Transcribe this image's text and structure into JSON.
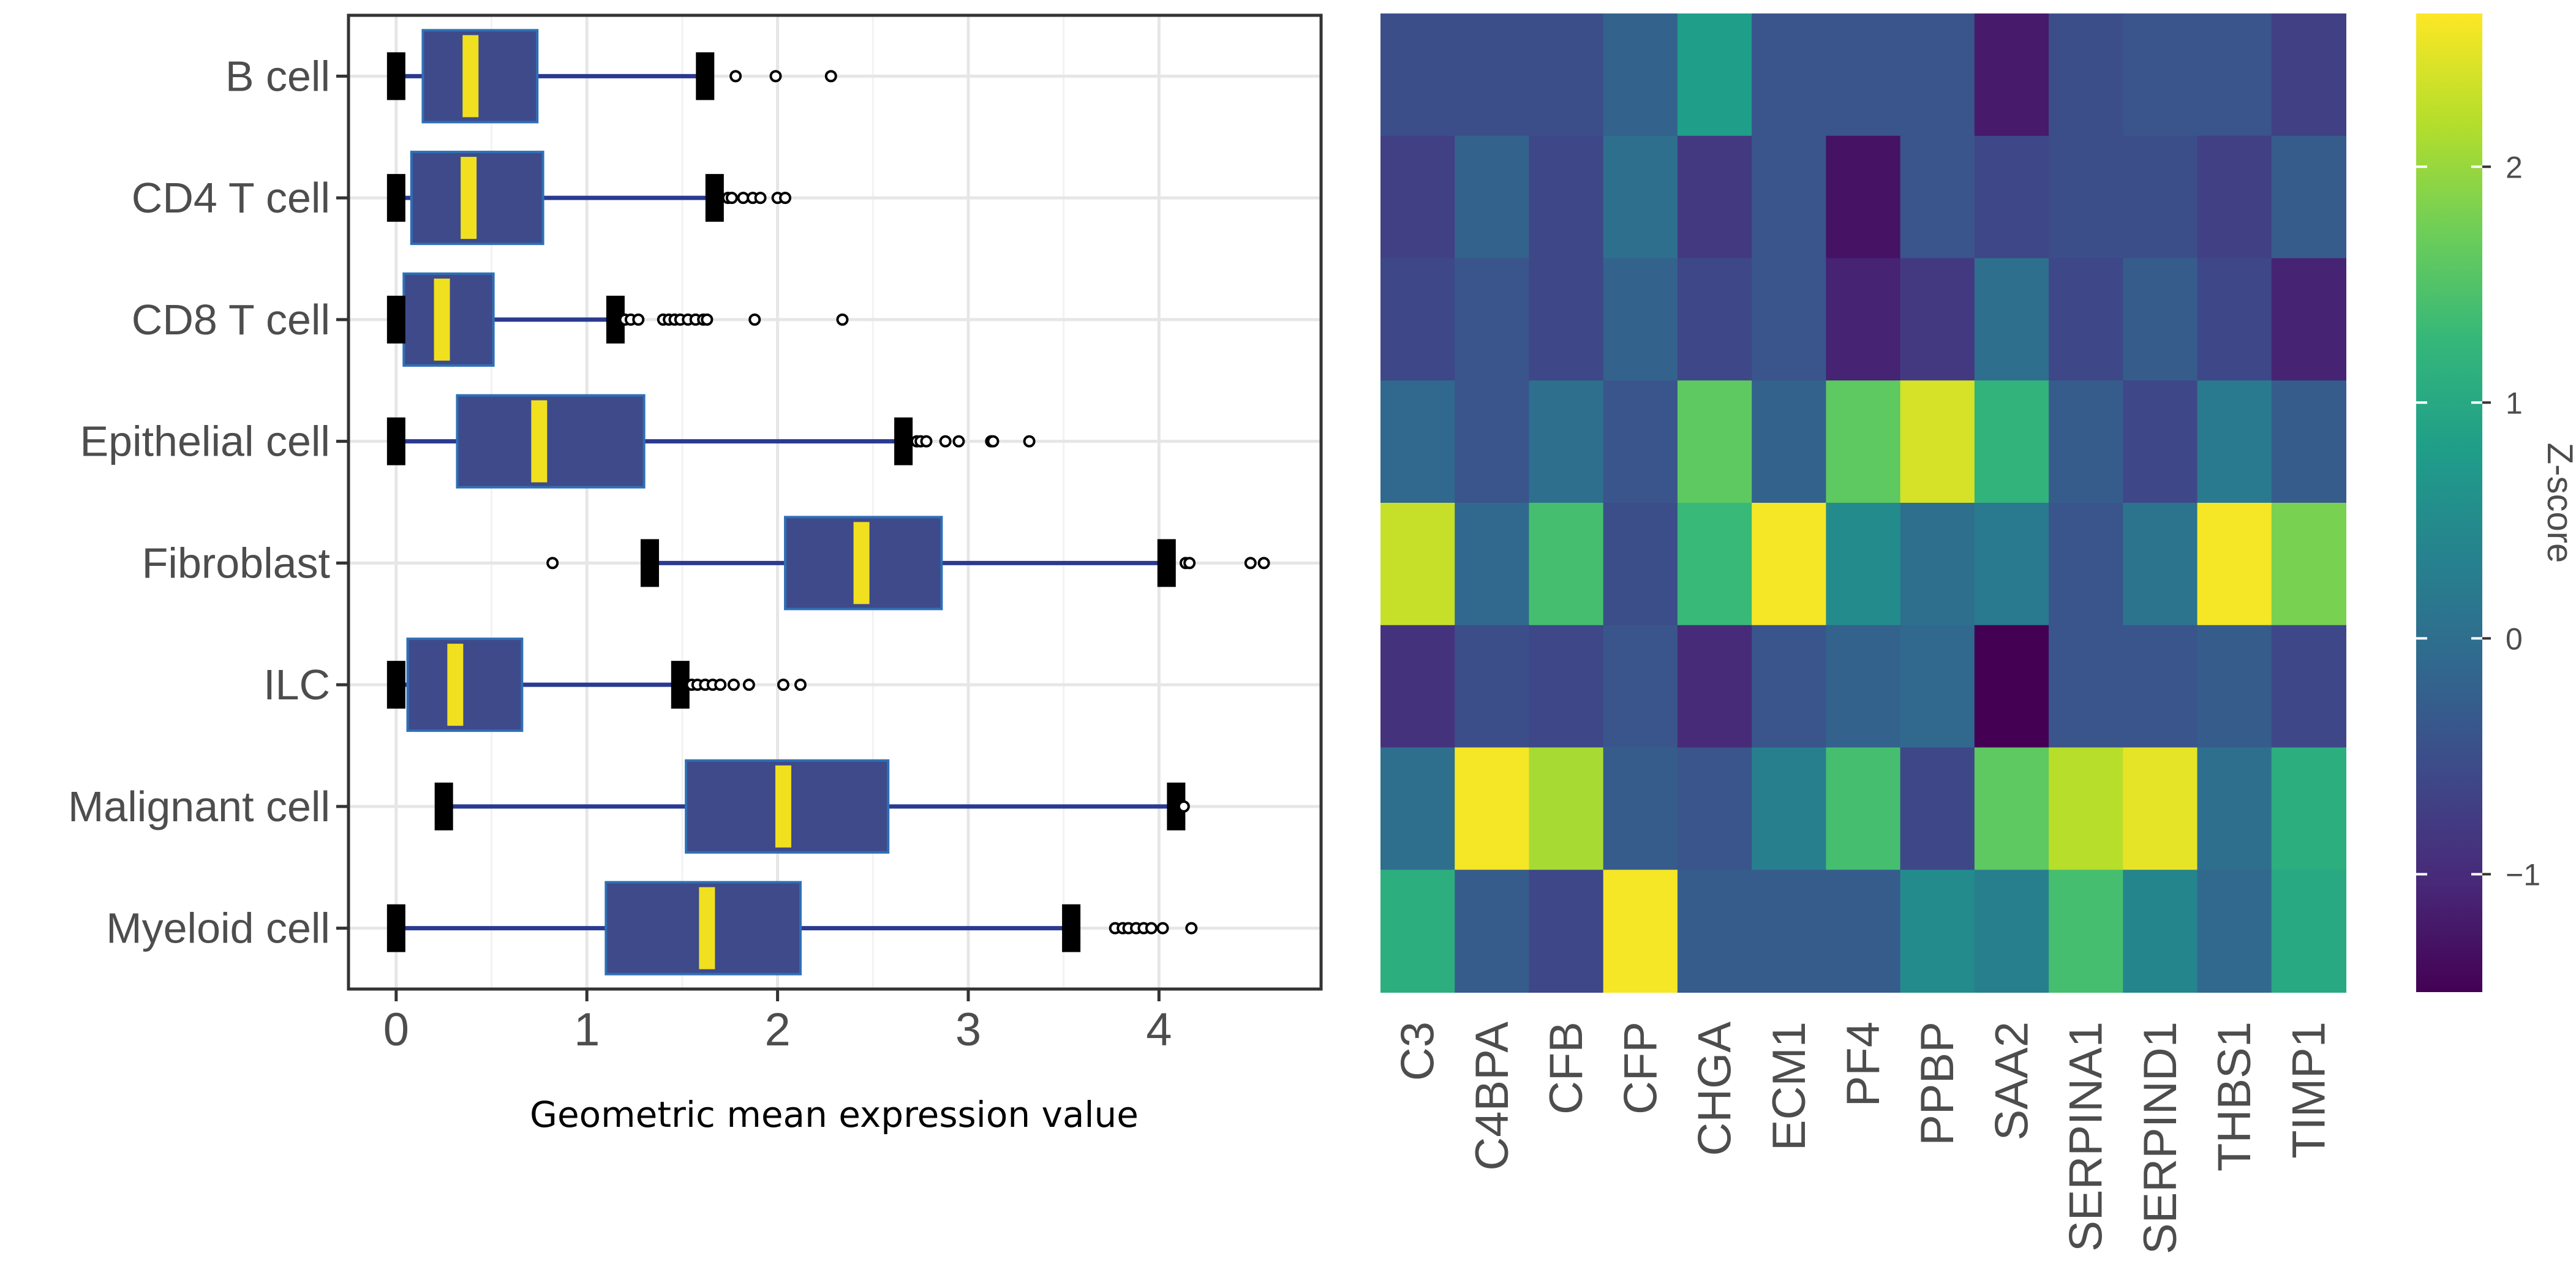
{
  "chart_data": [
    {
      "type": "box",
      "title": "",
      "xlabel": "Geometric mean expression value",
      "ylabel": "",
      "xlim": [
        -0.25,
        4.85
      ],
      "x_ticks": [
        0,
        1,
        2,
        3,
        4
      ],
      "x_tick_labels": [
        "0",
        "1",
        "2",
        "3",
        "4"
      ],
      "grid": true,
      "colors": {
        "box_fill": "#3e4a8a",
        "box_border": "#2f6fb5",
        "median": "#f0e020",
        "whisker": "#2a3a90",
        "whisker_cap": "#000000",
        "outlier": "#000000"
      },
      "categories": [
        "B cell",
        "CD4 T cell",
        "CD8 T cell",
        "Epithelial cell",
        "Fibroblast",
        "ILC",
        "Malignant cell",
        "Myeloid cell"
      ],
      "boxes": [
        {
          "category": "B cell",
          "lower_whisker": 0.0,
          "q1": 0.14,
          "median": 0.39,
          "q3": 0.74,
          "upper_whisker": 1.62,
          "outliers": [
            1.78,
            1.99,
            2.28
          ]
        },
        {
          "category": "CD4 T cell",
          "lower_whisker": 0.0,
          "q1": 0.08,
          "median": 0.38,
          "q3": 0.77,
          "upper_whisker": 1.67,
          "outliers": [
            1.74,
            1.76,
            1.82,
            1.87,
            1.91,
            2.0,
            2.04
          ]
        },
        {
          "category": "CD8 T cell",
          "lower_whisker": 0.0,
          "q1": 0.04,
          "median": 0.24,
          "q3": 0.51,
          "upper_whisker": 1.15,
          "outliers": [
            1.2,
            1.23,
            1.27,
            1.4,
            1.43,
            1.46,
            1.49,
            1.53,
            1.57,
            1.61,
            1.63,
            1.88,
            2.34
          ]
        },
        {
          "category": "Epithelial cell",
          "lower_whisker": 0.0,
          "q1": 0.32,
          "median": 0.75,
          "q3": 1.3,
          "upper_whisker": 2.66,
          "outliers": [
            2.73,
            2.75,
            2.78,
            2.88,
            2.95,
            3.12,
            3.13,
            3.32
          ]
        },
        {
          "category": "Fibroblast",
          "lower_whisker": 1.33,
          "q1": 2.04,
          "median": 2.44,
          "q3": 2.86,
          "upper_whisker": 4.04,
          "outliers": [
            0.82,
            4.14,
            4.16,
            4.48,
            4.55
          ]
        },
        {
          "category": "ILC",
          "lower_whisker": 0.0,
          "q1": 0.06,
          "median": 0.31,
          "q3": 0.66,
          "upper_whisker": 1.49,
          "outliers": [
            1.55,
            1.58,
            1.62,
            1.66,
            1.7,
            1.77,
            1.85,
            2.03,
            2.12
          ]
        },
        {
          "category": "Malignant cell",
          "lower_whisker": 0.25,
          "q1": 1.52,
          "median": 2.03,
          "q3": 2.58,
          "upper_whisker": 4.09,
          "outliers": [
            4.13
          ]
        },
        {
          "category": "Myeloid cell",
          "lower_whisker": 0.0,
          "q1": 1.1,
          "median": 1.63,
          "q3": 2.12,
          "upper_whisker": 3.54,
          "outliers": [
            3.77,
            3.81,
            3.84,
            3.88,
            3.92,
            3.96,
            4.02,
            4.17
          ]
        }
      ]
    },
    {
      "type": "heatmap",
      "title": "",
      "rows": [
        "B cell",
        "CD4 T cell",
        "CD8 T cell",
        "Epithelial cell",
        "Fibroblast",
        "ILC",
        "Malignant cell",
        "Myeloid cell"
      ],
      "columns": [
        "C3",
        "C4BPA",
        "CFB",
        "CFP",
        "CHGA",
        "ECM1",
        "PF4",
        "PPBP",
        "SAA2",
        "SERPINA1",
        "SERPIND1",
        "THBS1",
        "TIMP1"
      ],
      "values": [
        [
          -0.5,
          -0.5,
          -0.5,
          -0.2,
          0.8,
          -0.4,
          -0.4,
          -0.4,
          -1.2,
          -0.5,
          -0.4,
          -0.4,
          -0.7
        ],
        [
          -0.7,
          -0.2,
          -0.6,
          0.0,
          -0.8,
          -0.4,
          -1.3,
          -0.4,
          -0.6,
          -0.5,
          -0.5,
          -0.7,
          -0.3
        ],
        [
          -0.6,
          -0.4,
          -0.6,
          -0.2,
          -0.6,
          -0.4,
          -1.1,
          -0.8,
          0.0,
          -0.6,
          -0.3,
          -0.6,
          -1.1
        ],
        [
          -0.1,
          -0.4,
          0.0,
          -0.4,
          1.6,
          -0.2,
          1.6,
          2.4,
          1.2,
          -0.3,
          -0.6,
          0.2,
          -0.3
        ],
        [
          2.3,
          -0.1,
          1.4,
          -0.5,
          1.3,
          2.6,
          0.5,
          0.0,
          0.2,
          -0.4,
          0.1,
          2.6,
          1.8
        ],
        [
          -0.9,
          -0.5,
          -0.6,
          -0.4,
          -1.0,
          -0.4,
          -0.2,
          -0.1,
          -1.5,
          -0.4,
          -0.4,
          -0.3,
          -0.6
        ],
        [
          0.0,
          2.6,
          2.1,
          -0.3,
          -0.4,
          0.3,
          1.4,
          -0.6,
          1.6,
          2.2,
          2.5,
          0.0,
          1.1
        ],
        [
          1.1,
          -0.3,
          -0.6,
          2.6,
          -0.3,
          -0.3,
          -0.3,
          0.5,
          0.3,
          1.4,
          0.4,
          -0.1,
          1.0
        ]
      ],
      "colorbar": {
        "title": "Z-score",
        "range": [
          -1.5,
          2.65
        ],
        "ticks": [
          -1,
          0,
          1,
          2
        ],
        "tick_labels": [
          "−1",
          "0",
          "1",
          "2"
        ],
        "colormap": "viridis"
      }
    }
  ]
}
